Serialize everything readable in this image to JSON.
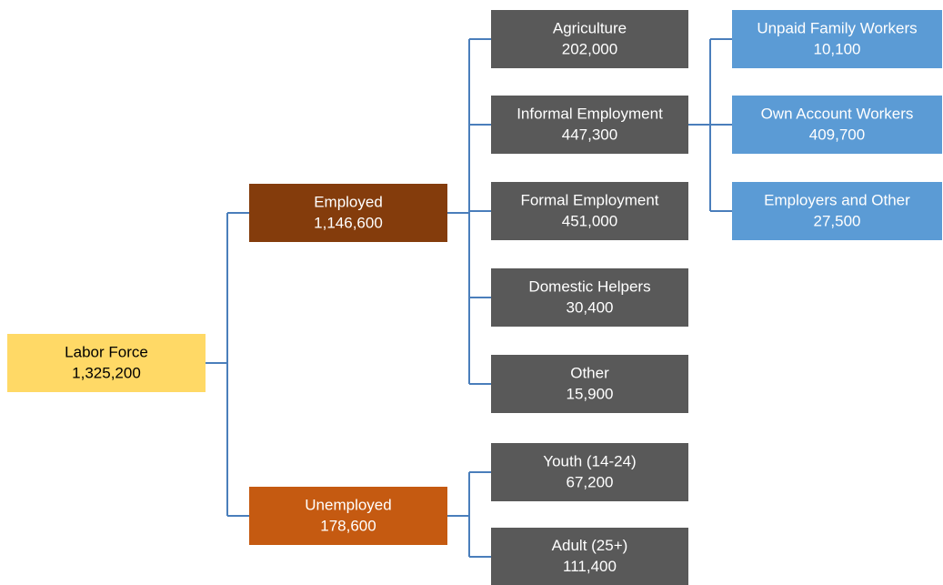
{
  "nodes": [
    {
      "label": "Labor Force",
      "value": "1,325,200"
    },
    {
      "label": "Employed",
      "value": "1,146,600"
    },
    {
      "label": "Unemployed",
      "value": "178,600"
    },
    {
      "label": "Agriculture",
      "value": "202,000"
    },
    {
      "label": "Informal Employment",
      "value": "447,300"
    },
    {
      "label": "Formal Employment",
      "value": "451,000"
    },
    {
      "label": "Domestic Helpers",
      "value": "30,400"
    },
    {
      "label": "Other",
      "value": "15,900"
    },
    {
      "label": "Youth (14-24)",
      "value": "67,200"
    },
    {
      "label": "Adult (25+)",
      "value": "111,400"
    },
    {
      "label": "Unpaid Family Workers",
      "value": "10,100"
    },
    {
      "label": "Own Account Workers",
      "value": "409,700"
    },
    {
      "label": "Employers and Other",
      "value": "27,500"
    }
  ]
}
